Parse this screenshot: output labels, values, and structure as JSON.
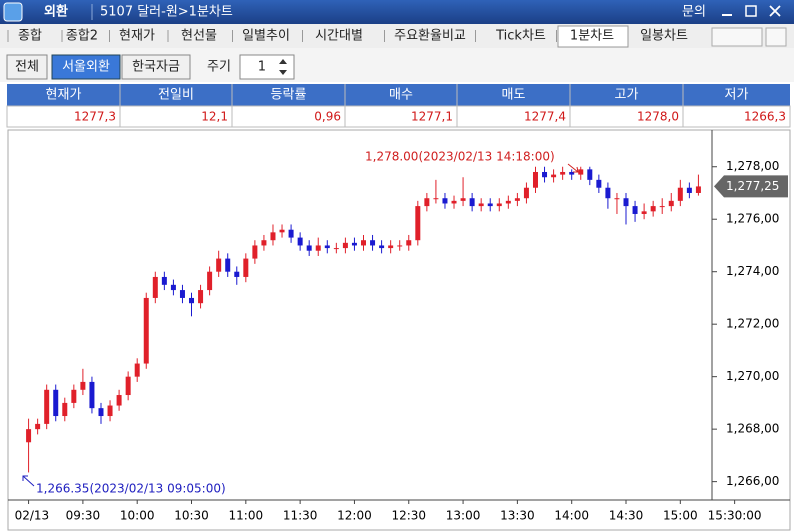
{
  "app": {
    "name": "외환",
    "title": "5107 달러-원>1분차트",
    "help": "문의"
  },
  "tabs": [
    "종합",
    "종합2",
    "현재가",
    "현선물",
    "일별추이",
    "시간대별",
    "주요환율비교",
    "Tick차트",
    "1분차트",
    "일봉차트"
  ],
  "market_buttons": [
    "전체",
    "서울외환",
    "한국자금"
  ],
  "period": {
    "label": "주기",
    "value": "1"
  },
  "quote_table": {
    "headers": [
      "현재가",
      "전일비",
      "등락률",
      "매수",
      "매도",
      "고가",
      "저가"
    ],
    "values": [
      "1277,3",
      "12,1",
      "0,96",
      "1277,1",
      "1277,4",
      "1278,0",
      "1266,3"
    ]
  },
  "chart_data": {
    "type": "candlestick",
    "up_color": "#e0202a",
    "down_color": "#1a1ad0",
    "high_annotation": "1,278.00(2023/02/13 14:18:00)",
    "low_annotation": "1,266.35(2023/02/13 09:05:00)",
    "last_price": {
      "value": 1277.25,
      "label": "1,277,25"
    },
    "xlim": [
      -1.5,
      75.5
    ],
    "xticks": [
      {
        "value": 0,
        "label": "02/13"
      },
      {
        "value": 6,
        "label": "09:30"
      },
      {
        "value": 12,
        "label": "10:00"
      },
      {
        "value": 18,
        "label": "10:30"
      },
      {
        "value": 24,
        "label": "11:00"
      },
      {
        "value": 30,
        "label": "11:30"
      },
      {
        "value": 36,
        "label": "12:00"
      },
      {
        "value": 42,
        "label": "12:30"
      },
      {
        "value": 48,
        "label": "13:00"
      },
      {
        "value": 54,
        "label": "13:30"
      },
      {
        "value": 60,
        "label": "14:00"
      },
      {
        "value": 66,
        "label": "14:30"
      },
      {
        "value": 72,
        "label": "15:00"
      },
      {
        "value": 78,
        "label": "15:30:00"
      }
    ],
    "ylim": [
      1265.3,
      1279.4
    ],
    "yticks": [
      {
        "value": 1266,
        "label": "1,266,00"
      },
      {
        "value": 1268,
        "label": "1,268,00"
      },
      {
        "value": 1270,
        "label": "1,270,00"
      },
      {
        "value": 1272,
        "label": "1,272,00"
      },
      {
        "value": 1274,
        "label": "1,274,00"
      },
      {
        "value": 1276,
        "label": "1,276,00"
      },
      {
        "value": 1278,
        "label": "1,278,00"
      }
    ],
    "open": [
      1267.5,
      1268.0,
      1268.2,
      1269.5,
      1268.5,
      1269.0,
      1269.5,
      1269.8,
      1268.8,
      1268.5,
      1268.9,
      1269.3,
      1270.0,
      1270.5,
      1273.0,
      1273.8,
      1273.5,
      1273.3,
      1273.0,
      1272.8,
      1273.3,
      1274.0,
      1274.5,
      1274.0,
      1273.8,
      1274.5,
      1275.0,
      1275.2,
      1275.5,
      1275.6,
      1275.3,
      1275.0,
      1274.8,
      1275.0,
      1274.9,
      1274.9,
      1275.1,
      1275.0,
      1275.2,
      1275.0,
      1274.9,
      1275.0,
      1275.0,
      1275.2,
      1276.5,
      1276.8,
      1276.8,
      1276.6,
      1276.7,
      1276.8,
      1276.5,
      1276.6,
      1276.5,
      1276.6,
      1276.7,
      1276.8,
      1277.2,
      1277.8,
      1277.6,
      1277.7,
      1277.8,
      1277.7,
      1277.9,
      1277.5,
      1277.2,
      1276.8,
      1276.8,
      1276.5,
      1276.2,
      1276.3,
      1276.5,
      1276.5,
      1276.7,
      1277.2,
      1277.0
    ],
    "high": [
      1268.4,
      1268.4,
      1269.7,
      1269.7,
      1269.2,
      1269.7,
      1270.3,
      1270.0,
      1269.0,
      1269.1,
      1269.5,
      1270.2,
      1270.7,
      1273.2,
      1274.0,
      1274.0,
      1273.7,
      1273.5,
      1273.2,
      1273.5,
      1274.2,
      1274.8,
      1274.7,
      1274.2,
      1274.7,
      1275.2,
      1275.4,
      1275.8,
      1275.8,
      1275.8,
      1275.5,
      1275.2,
      1275.3,
      1275.2,
      1275.1,
      1275.3,
      1275.3,
      1275.4,
      1275.4,
      1275.2,
      1275.2,
      1275.2,
      1275.4,
      1276.7,
      1277.0,
      1277.5,
      1277.0,
      1276.9,
      1277.6,
      1277.0,
      1276.8,
      1276.8,
      1276.8,
      1276.9,
      1277.0,
      1277.4,
      1278.0,
      1278.0,
      1277.9,
      1278.0,
      1277.9,
      1278.0,
      1278.0,
      1277.7,
      1277.4,
      1277.0,
      1277.0,
      1276.7,
      1276.6,
      1276.7,
      1276.8,
      1277.0,
      1277.5,
      1277.4,
      1277.7
    ],
    "low": [
      1266.35,
      1267.8,
      1268.0,
      1268.3,
      1268.3,
      1268.8,
      1269.3,
      1268.6,
      1268.2,
      1268.3,
      1268.7,
      1269.1,
      1269.8,
      1270.3,
      1272.8,
      1273.3,
      1273.1,
      1272.8,
      1272.3,
      1272.6,
      1273.1,
      1273.8,
      1273.8,
      1273.5,
      1273.6,
      1274.3,
      1274.8,
      1275.0,
      1275.3,
      1275.1,
      1274.8,
      1274.6,
      1274.6,
      1274.7,
      1274.7,
      1274.7,
      1274.8,
      1274.8,
      1274.8,
      1274.7,
      1274.7,
      1274.8,
      1274.8,
      1275.0,
      1276.3,
      1276.6,
      1276.4,
      1276.4,
      1276.5,
      1276.3,
      1276.3,
      1276.3,
      1276.3,
      1276.4,
      1276.5,
      1276.6,
      1277.0,
      1277.4,
      1277.4,
      1277.5,
      1277.5,
      1277.5,
      1277.3,
      1277.0,
      1276.4,
      1276.2,
      1275.8,
      1275.9,
      1276.0,
      1276.1,
      1276.2,
      1276.3,
      1276.5,
      1276.8,
      1276.9
    ],
    "close": [
      1268.0,
      1268.2,
      1269.5,
      1268.5,
      1269.0,
      1269.5,
      1269.8,
      1268.8,
      1268.5,
      1268.9,
      1269.3,
      1270.0,
      1270.5,
      1273.0,
      1273.8,
      1273.5,
      1273.3,
      1273.0,
      1272.8,
      1273.3,
      1274.0,
      1274.5,
      1274.0,
      1273.8,
      1274.5,
      1275.0,
      1275.2,
      1275.5,
      1275.6,
      1275.3,
      1275.0,
      1274.8,
      1275.0,
      1274.9,
      1274.9,
      1275.1,
      1275.0,
      1275.2,
      1275.0,
      1274.9,
      1275.0,
      1275.0,
      1275.2,
      1276.5,
      1276.8,
      1276.8,
      1276.6,
      1276.7,
      1276.8,
      1276.5,
      1276.6,
      1276.5,
      1276.6,
      1276.7,
      1276.8,
      1277.2,
      1277.8,
      1277.6,
      1277.7,
      1277.8,
      1277.7,
      1277.9,
      1277.5,
      1277.2,
      1276.8,
      1276.8,
      1276.5,
      1276.2,
      1276.3,
      1276.5,
      1276.5,
      1276.7,
      1277.2,
      1277.0,
      1277.25
    ]
  }
}
